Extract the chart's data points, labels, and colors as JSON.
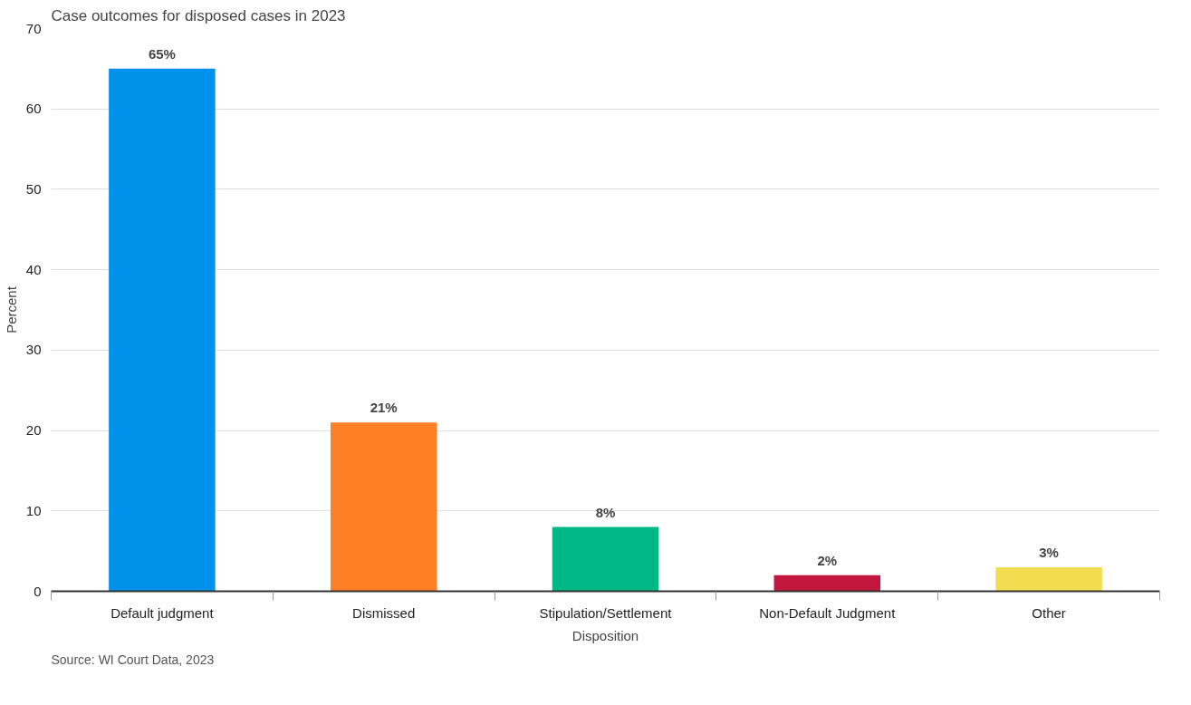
{
  "chart_data": {
    "type": "bar",
    "title": "Case outcomes for disposed cases in 2023",
    "xlabel": "Disposition",
    "ylabel": "Percent",
    "categories": [
      "Default judgment",
      "Dismissed",
      "Stipulation/Settlement",
      "Non-Default Judgment",
      "Other"
    ],
    "values": [
      65,
      21,
      8,
      2,
      3
    ],
    "colors": [
      "#0091ea",
      "#ff7f27",
      "#00b886",
      "#c2163f",
      "#f2dc4f"
    ],
    "value_labels": [
      "65%",
      "21%",
      "8%",
      "2%",
      "3%"
    ],
    "ylim": [
      0,
      70
    ],
    "yticks": [
      0,
      10,
      20,
      30,
      40,
      50,
      60,
      70
    ],
    "grid": "y",
    "annotations": [
      "Source: WI Court Data, 2023"
    ]
  }
}
